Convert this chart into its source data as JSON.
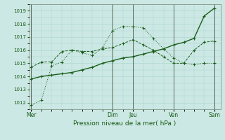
{
  "xlabel": "Pression niveau de la mer( hPa )",
  "background_color": "#cce8e4",
  "grid_color": "#a8d4cc",
  "line_color": "#1a5c1a",
  "vline_color": "#556655",
  "ylim": [
    1011.5,
    1019.5
  ],
  "yticks": [
    1012,
    1013,
    1014,
    1015,
    1016,
    1017,
    1018,
    1019
  ],
  "day_labels": [
    "Mer",
    "Dim",
    "Jeu",
    "Ven",
    "Sam"
  ],
  "day_positions": [
    0,
    40,
    50,
    70,
    90
  ],
  "xlim": [
    -1,
    93
  ],
  "line1_x": [
    0,
    5,
    10,
    15,
    20,
    25,
    30,
    35,
    40,
    45,
    50,
    55,
    60,
    65,
    70,
    75,
    80,
    85,
    90
  ],
  "line1_y": [
    1011.8,
    1012.2,
    1014.8,
    1015.1,
    1016.0,
    1015.8,
    1015.6,
    1016.2,
    1017.5,
    1017.8,
    1017.8,
    1017.7,
    1016.9,
    1016.1,
    1015.4,
    1015.0,
    1014.9,
    1015.0,
    1015.0
  ],
  "line2_x": [
    0,
    5,
    10,
    15,
    20,
    25,
    30,
    35,
    40,
    45,
    50,
    55,
    60,
    65,
    70,
    75,
    80,
    85,
    90
  ],
  "line2_y": [
    1013.8,
    1014.0,
    1014.1,
    1014.2,
    1014.3,
    1014.5,
    1014.7,
    1015.0,
    1015.2,
    1015.4,
    1015.5,
    1015.7,
    1015.9,
    1016.1,
    1016.4,
    1016.6,
    1016.9,
    1018.6,
    1019.2
  ],
  "line3_x": [
    0,
    5,
    10,
    15,
    20,
    25,
    30,
    35,
    40,
    45,
    50,
    55,
    60,
    65,
    70,
    75,
    80,
    85,
    90
  ],
  "line3_y": [
    1014.7,
    1015.1,
    1015.1,
    1015.9,
    1016.0,
    1015.9,
    1015.9,
    1016.1,
    1016.2,
    1016.5,
    1016.8,
    1016.4,
    1016.0,
    1015.5,
    1015.0,
    1015.0,
    1016.0,
    1016.6,
    1016.7
  ]
}
